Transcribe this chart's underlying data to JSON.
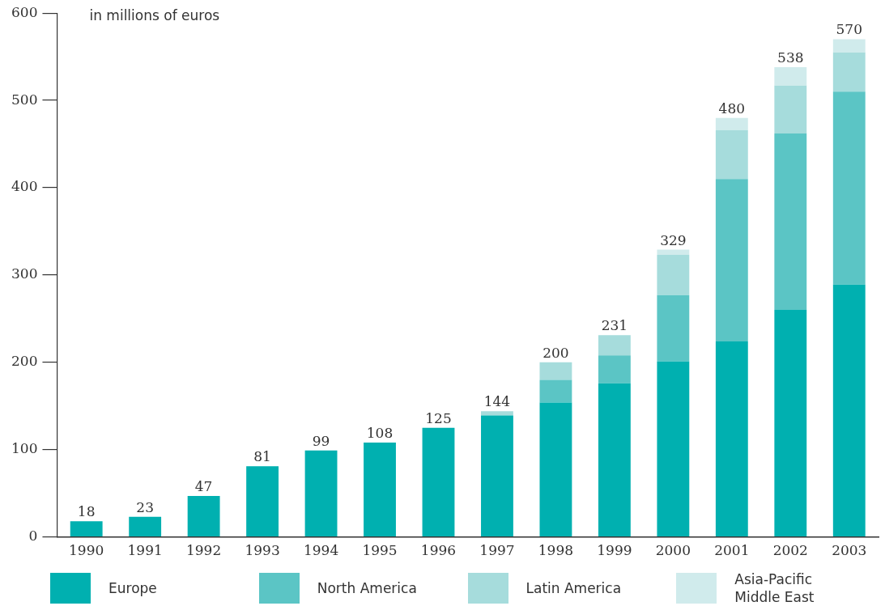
{
  "chart_data": {
    "type": "bar",
    "stacked": true,
    "ylabel": "in millions of euros",
    "categories": [
      "1990",
      "1991",
      "1992",
      "1993",
      "1994",
      "1995",
      "1996",
      "1997",
      "1998",
      "1999",
      "2000",
      "2001",
      "2002",
      "2003"
    ],
    "series": [
      {
        "name": "Europe",
        "color": "#00b0b0",
        "values": [
          18,
          23,
          47,
          81,
          99,
          108,
          125,
          139,
          154,
          176,
          201,
          224,
          260,
          289
        ]
      },
      {
        "name": "North America",
        "color": "#5bc5c5",
        "values": [
          0,
          0,
          0,
          0,
          0,
          0,
          0,
          0,
          26,
          32,
          76,
          186,
          202,
          221
        ]
      },
      {
        "name": "Latin America",
        "color": "#a6dcdc",
        "values": [
          0,
          0,
          0,
          0,
          0,
          0,
          0,
          5,
          20,
          23,
          46,
          56,
          55,
          45
        ]
      },
      {
        "name": "Asia-Pacific Middle East",
        "color": "#d0ebec",
        "values": [
          0,
          0,
          0,
          0,
          0,
          0,
          0,
          0,
          0,
          0,
          6,
          14,
          21,
          15
        ]
      }
    ],
    "totals": [
      "18",
      "23",
      "47",
      "81",
      "99",
      "108",
      "125",
      "144",
      "200",
      "231",
      "329",
      "480",
      "538",
      "570"
    ],
    "ylim": [
      0,
      600
    ],
    "yticks": [
      0,
      100,
      200,
      300,
      400,
      500,
      600
    ],
    "grid": false,
    "legend": "bottom"
  }
}
